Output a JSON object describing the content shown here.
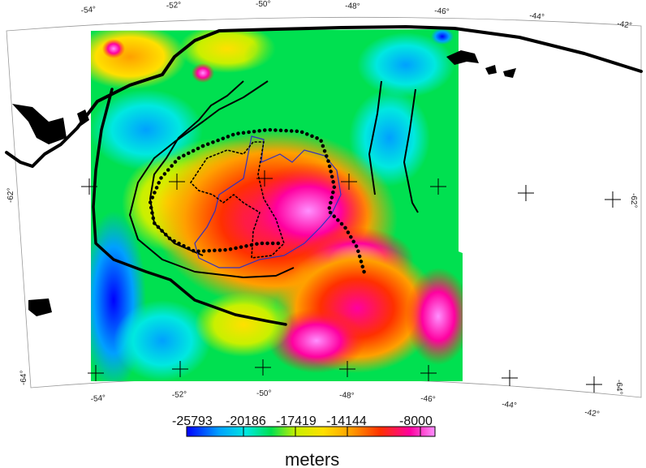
{
  "map": {
    "colors": {
      "scale": [
        "#0000ff",
        "#00a0ff",
        "#00e8e0",
        "#00e050",
        "#c8f000",
        "#ffe000",
        "#ffa000",
        "#ff3000",
        "#ff00a0",
        "#ff90ff"
      ],
      "outline": "#000000",
      "contour_blue": "#3030c0",
      "land": "#000000"
    },
    "top_lon_labels": [
      "-54°",
      "-52°",
      "-50°",
      "-48°",
      "-46°",
      "-44°",
      "-42°"
    ],
    "bottom_lon_labels": [
      "-54°",
      "-52°",
      "-50°",
      "-48°",
      "-46°",
      "-44°",
      "-42°"
    ],
    "left_lat_labels": [
      "-62°",
      "-64°"
    ],
    "right_lat_labels": [
      "-62°",
      "-64°"
    ]
  },
  "colorbar": {
    "tick_labels": [
      "-25793",
      "-20186",
      "-17419",
      "-14144",
      "-8000"
    ],
    "unit": "meters"
  }
}
